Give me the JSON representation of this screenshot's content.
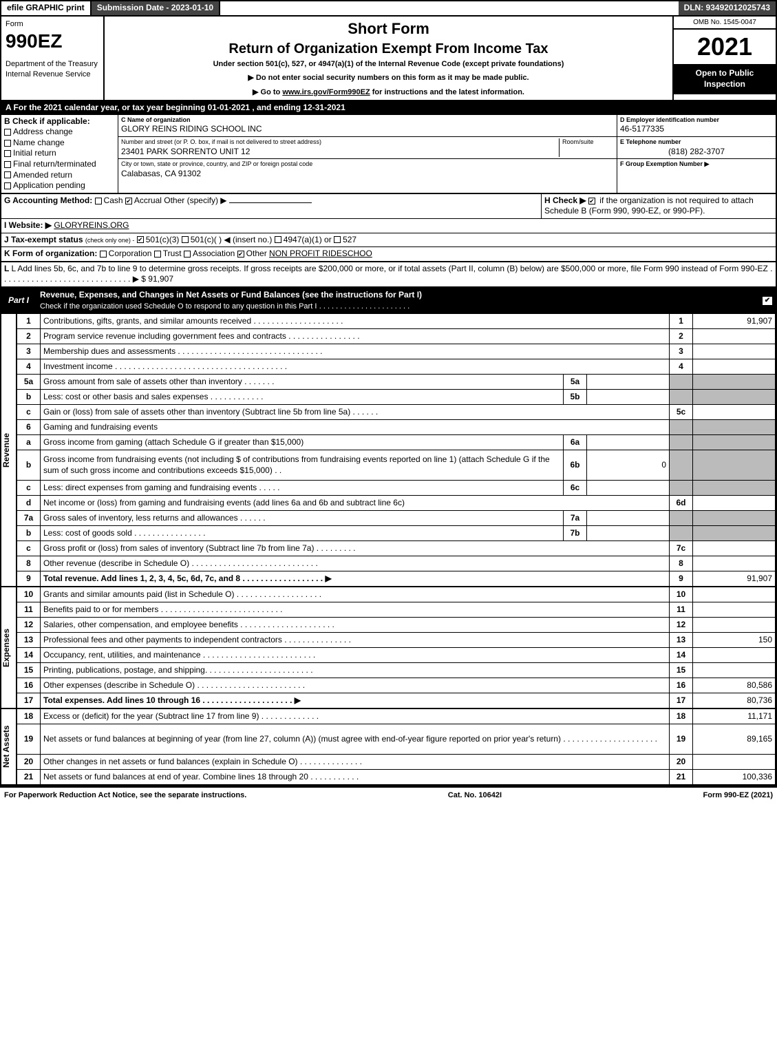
{
  "topbar": {
    "efile": "efile GRAPHIC print",
    "subdate": "Submission Date - 2023-01-10",
    "dln": "DLN: 93492012025743"
  },
  "header": {
    "form": "Form",
    "formnum": "990EZ",
    "dept": "Department of the Treasury\nInternal Revenue Service",
    "title1": "Short Form",
    "title2": "Return of Organization Exempt From Income Tax",
    "subtitle": "Under section 501(c), 527, or 4947(a)(1) of the Internal Revenue Code (except private foundations)",
    "arrow1": "▶ Do not enter social security numbers on this form as it may be made public.",
    "arrow2": "▶ Go to www.irs.gov/Form990EZ for instructions and the latest information.",
    "omb": "OMB No. 1545-0047",
    "year": "2021",
    "open": "Open to Public Inspection"
  },
  "lineA": "A  For the 2021 calendar year, or tax year beginning 01-01-2021 , and ending 12-31-2021",
  "boxB": {
    "title": "B  Check if applicable:",
    "items": [
      "Address change",
      "Name change",
      "Initial return",
      "Final return/terminated",
      "Amended return",
      "Application pending"
    ]
  },
  "boxC": {
    "label": "C Name of organization",
    "name": "GLORY REINS RIDING SCHOOL INC",
    "streetlabel": "Number and street (or P. O. box, if mail is not delivered to street address)",
    "room": "Room/suite",
    "street": "23401 PARK SORRENTO UNIT 12",
    "citylabel": "City or town, state or province, country, and ZIP or foreign postal code",
    "city": "Calabasas, CA  91302"
  },
  "boxD": {
    "label": "D Employer identification number",
    "value": "46-5177335"
  },
  "boxE": {
    "label": "E Telephone number",
    "value": "(818) 282-3707"
  },
  "boxF": {
    "label": "F Group Exemption Number  ▶",
    "value": ""
  },
  "lineG": {
    "label": "G Accounting Method:",
    "o1": "Cash",
    "o2": "Accrual",
    "o3": "Other (specify) ▶"
  },
  "lineH": {
    "label": "H   Check ▶",
    "tail": "if the organization is not required to attach Schedule B (Form 990, 990-EZ, or 990-PF)."
  },
  "lineI": {
    "label": "I Website: ▶",
    "value": "GLORYREINS.ORG"
  },
  "lineJ": {
    "label": "J Tax-exempt status",
    "tail": "(check only one) -",
    "o1": "501(c)(3)",
    "o2": "501(c)(  ) ◀ (insert no.)",
    "o3": "4947(a)(1) or",
    "o4": "527"
  },
  "lineK": {
    "label": "K Form of organization:",
    "o1": "Corporation",
    "o2": "Trust",
    "o3": "Association",
    "o4": "Other",
    "other": "NON PROFIT RIDESCHOO"
  },
  "lineL": {
    "text": "L Add lines 5b, 6c, and 7b to line 9 to determine gross receipts. If gross receipts are $200,000 or more, or if total assets (Part II, column (B) below) are $500,000 or more, file Form 990 instead of Form 990-EZ",
    "dots": ". . . . . . . . . . . . . . . . . . . . . . . . . . . . . ▶",
    "amount": "$ 91,907"
  },
  "part1": {
    "label": "Part I",
    "title": "Revenue, Expenses, and Changes in Net Assets or Fund Balances (see the instructions for Part I)",
    "sub": "Check if the organization used Schedule O to respond to any question in this Part I",
    "subdots": ". . . . . . . . . . . . . . . . . . . . . ."
  },
  "sidelabels": {
    "rev": "Revenue",
    "exp": "Expenses",
    "na": "Net Assets"
  },
  "rows": [
    {
      "n": "1",
      "d": "Contributions, gifts, grants, and similar amounts received  . . . . . . . . . . . . . . . . . . . .",
      "rn": "1",
      "v": "91,907"
    },
    {
      "n": "2",
      "d": "Program service revenue including government fees and contracts  . . . . . . . . . . . . . . . .",
      "rn": "2",
      "v": ""
    },
    {
      "n": "3",
      "d": "Membership dues and assessments  . . . . . . . . . . . . . . . . . . . . . . . . . . . . . . . .",
      "rn": "3",
      "v": ""
    },
    {
      "n": "4",
      "d": "Investment income  . . . . . . . . . . . . . . . . . . . . . . . . . . . . . . . . . . . . . .",
      "rn": "4",
      "v": ""
    },
    {
      "n": "5a",
      "d": "Gross amount from sale of assets other than inventory  . . . . . . .",
      "mini": "5a",
      "mv": "",
      "shade": true
    },
    {
      "n": "b",
      "d": "Less: cost or other basis and sales expenses  . . . . . . . . . . . .",
      "mini": "5b",
      "mv": "",
      "shade": true
    },
    {
      "n": "c",
      "d": "Gain or (loss) from sale of assets other than inventory (Subtract line 5b from line 5a)  . . . . . .",
      "rn": "5c",
      "v": ""
    },
    {
      "n": "6",
      "d": "Gaming and fundraising events",
      "shade": true,
      "headonly": true
    },
    {
      "n": "a",
      "d": "Gross income from gaming (attach Schedule G if greater than $15,000)",
      "mini": "6a",
      "mv": "",
      "shade": true
    },
    {
      "n": "b",
      "d": "Gross income from fundraising events (not including $                          of contributions from fundraising events reported on line 1) (attach Schedule G if the sum of such gross income and contributions exceeds $15,000)    . .",
      "mini": "6b",
      "mv": "0",
      "shade": true,
      "tall": true
    },
    {
      "n": "c",
      "d": "Less: direct expenses from gaming and fundraising events   . . . . .",
      "mini": "6c",
      "mv": "",
      "shade": true
    },
    {
      "n": "d",
      "d": "Net income or (loss) from gaming and fundraising events (add lines 6a and 6b and subtract line 6c)",
      "rn": "6d",
      "v": ""
    },
    {
      "n": "7a",
      "d": "Gross sales of inventory, less returns and allowances  . . . . . .",
      "mini": "7a",
      "mv": "",
      "shade": true
    },
    {
      "n": "b",
      "d": "Less: cost of goods sold        . . . . . . . . . . . . . . . .",
      "mini": "7b",
      "mv": "",
      "shade": true
    },
    {
      "n": "c",
      "d": "Gross profit or (loss) from sales of inventory (Subtract line 7b from line 7a)  . . . . . . . . .",
      "rn": "7c",
      "v": ""
    },
    {
      "n": "8",
      "d": "Other revenue (describe in Schedule O) . . . . . . . . . . . . . . . . . . . . . . . . . . . .",
      "rn": "8",
      "v": ""
    },
    {
      "n": "9",
      "d": "Total revenue. Add lines 1, 2, 3, 4, 5c, 6d, 7c, and 8  . . . . . . . . . . . . . . . . . .   ▶",
      "rn": "9",
      "v": "91,907",
      "bold": true
    }
  ],
  "exprows": [
    {
      "n": "10",
      "d": "Grants and similar amounts paid (list in Schedule O)  . . . . . . . . . . . . . . . . . . .",
      "rn": "10",
      "v": ""
    },
    {
      "n": "11",
      "d": "Benefits paid to or for members      . . . . . . . . . . . . . . . . . . . . . . . . . . .",
      "rn": "11",
      "v": ""
    },
    {
      "n": "12",
      "d": "Salaries, other compensation, and employee benefits . . . . . . . . . . . . . . . . . . . . .",
      "rn": "12",
      "v": ""
    },
    {
      "n": "13",
      "d": "Professional fees and other payments to independent contractors  . . . . . . . . . . . . . . .",
      "rn": "13",
      "v": "150"
    },
    {
      "n": "14",
      "d": "Occupancy, rent, utilities, and maintenance . . . . . . . . . . . . . . . . . . . . . . . . .",
      "rn": "14",
      "v": ""
    },
    {
      "n": "15",
      "d": "Printing, publications, postage, and shipping.  . . . . . . . . . . . . . . . . . . . . . . .",
      "rn": "15",
      "v": ""
    },
    {
      "n": "16",
      "d": "Other expenses (describe in Schedule O)    . . . . . . . . . . . . . . . . . . . . . . . .",
      "rn": "16",
      "v": "80,586"
    },
    {
      "n": "17",
      "d": "Total expenses. Add lines 10 through 16      . . . . . . . . . . . . . . . . . . . .   ▶",
      "rn": "17",
      "v": "80,736",
      "bold": true
    }
  ],
  "narows": [
    {
      "n": "18",
      "d": "Excess or (deficit) for the year (Subtract line 17 from line 9)        . . . . . . . . . . . . .",
      "rn": "18",
      "v": "11,171"
    },
    {
      "n": "19",
      "d": "Net assets or fund balances at beginning of year (from line 27, column (A)) (must agree with end-of-year figure reported on prior year's return) .  . . . . . . . . . . . . . . . . . . . .",
      "rn": "19",
      "v": "89,165",
      "tall": true
    },
    {
      "n": "20",
      "d": "Other changes in net assets or fund balances (explain in Schedule O) . . . . . . . . . . . . . .",
      "rn": "20",
      "v": ""
    },
    {
      "n": "21",
      "d": "Net assets or fund balances at end of year. Combine lines 18 through 20 . . . . . . . . . . .",
      "rn": "21",
      "v": "100,336"
    }
  ],
  "footer": {
    "left": "For Paperwork Reduction Act Notice, see the separate instructions.",
    "mid": "Cat. No. 10642I",
    "right": "Form 990-EZ (2021)"
  }
}
